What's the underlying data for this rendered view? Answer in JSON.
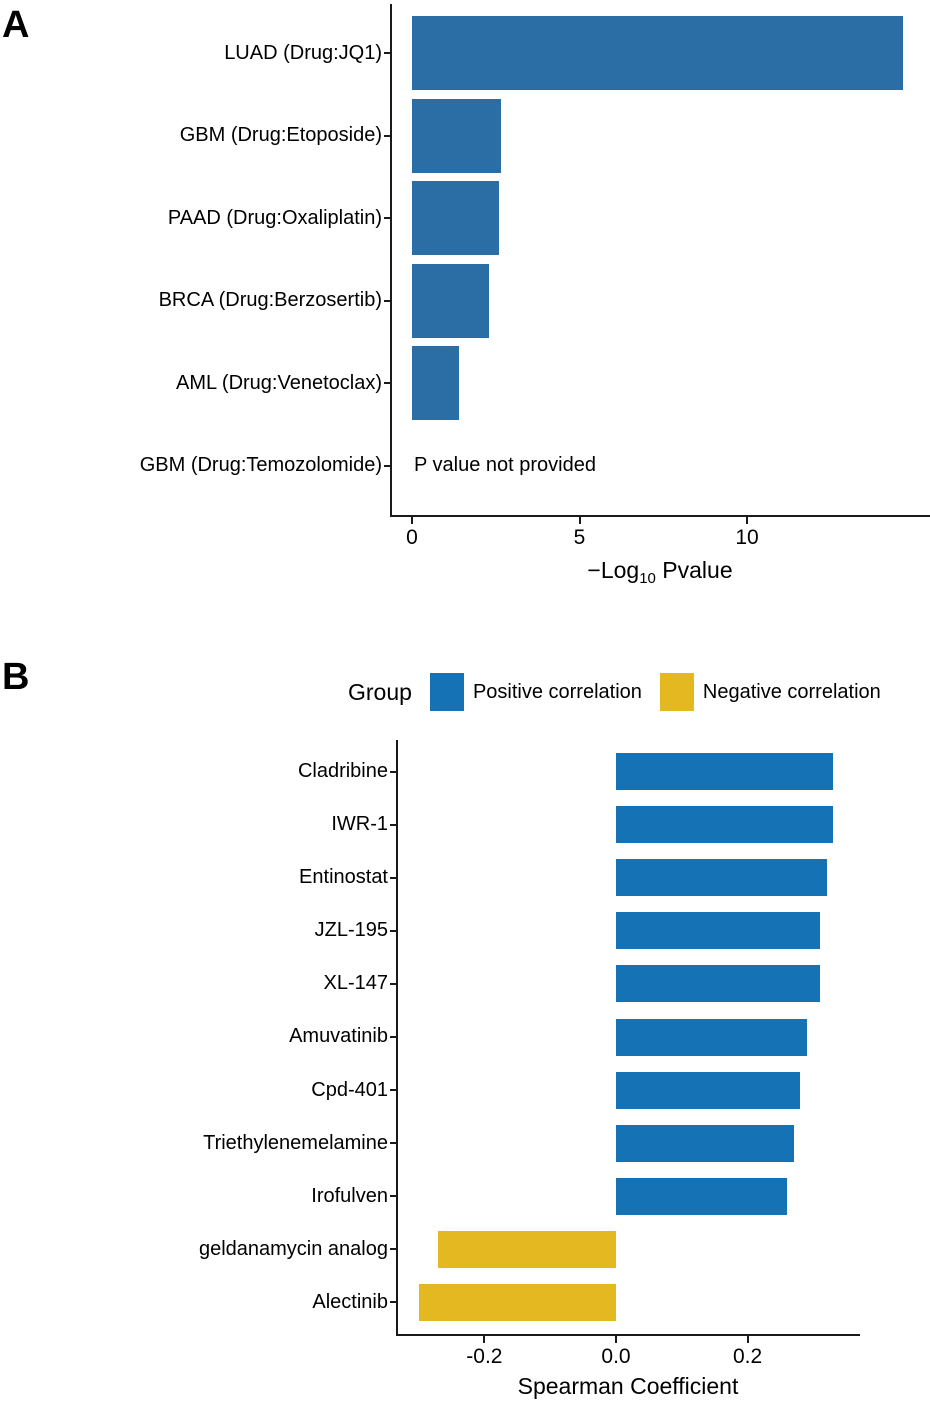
{
  "colors": {
    "axis": "#1a1a1a",
    "text": "#000000",
    "panel_a_bar": "#2b6da5",
    "positive": "#1572b4",
    "negative": "#e3b820"
  },
  "panel_a": {
    "letter": "A",
    "xlabel_prefix": "−Log",
    "xlabel_sub": "10",
    "xlabel_suffix": " Pvalue"
  },
  "panel_b": {
    "letter": "B",
    "legend": {
      "title": "Group",
      "items": [
        {
          "label": "Positive correlation",
          "color_key": "positive"
        },
        {
          "label": "Negative correlation",
          "color_key": "negative"
        }
      ]
    },
    "xlabel": "Spearman Coefficient"
  },
  "chart_data": [
    {
      "type": "bar",
      "orientation": "horizontal",
      "panel": "A",
      "title": "",
      "xlabel": "-Log10 Pvalue",
      "ylabel": "",
      "categories": [
        "LUAD (Drug:JQ1)",
        "GBM (Drug:Etoposide)",
        "PAAD (Drug:Oxaliplatin)",
        "BRCA (Drug:Berzosertib)",
        "AML (Drug:Venetoclax)",
        "GBM (Drug:Temozolomide)"
      ],
      "values": [
        14.65,
        2.65,
        2.6,
        2.3,
        1.4,
        null
      ],
      "annotation": "P value not provided",
      "annotation_category": "GBM (Drug:Temozolomide)",
      "xticks": [
        0,
        5,
        10
      ],
      "xtick_labels": [
        "0",
        "5",
        "10"
      ],
      "xlim": [
        0,
        15.5
      ],
      "grid": false,
      "legend_position": "none",
      "bar_color_key": "panel_a_bar"
    },
    {
      "type": "bar",
      "orientation": "horizontal",
      "panel": "B",
      "title": "",
      "xlabel": "Spearman Coefficient",
      "ylabel": "",
      "legend_title": "Group",
      "legend_position": "top",
      "categories": [
        "Cladribine",
        "IWR-1",
        "Entinostat",
        "JZL-195",
        "XL-147",
        "Amuvatinib",
        "Cpd-401",
        "Triethylenemelamine",
        "Irofulven",
        "geldanamycin analog",
        "Alectinib"
      ],
      "values": [
        0.33,
        0.33,
        0.32,
        0.31,
        0.31,
        0.29,
        0.28,
        0.27,
        0.26,
        -0.27,
        -0.3
      ],
      "groups": [
        "positive",
        "positive",
        "positive",
        "positive",
        "positive",
        "positive",
        "positive",
        "positive",
        "positive",
        "negative",
        "negative"
      ],
      "xticks": [
        -0.2,
        0.0,
        0.2
      ],
      "xtick_labels": [
        "-0.2",
        "0.0",
        "0.2"
      ],
      "xlim": [
        -0.33,
        0.37
      ],
      "grid": false
    }
  ]
}
